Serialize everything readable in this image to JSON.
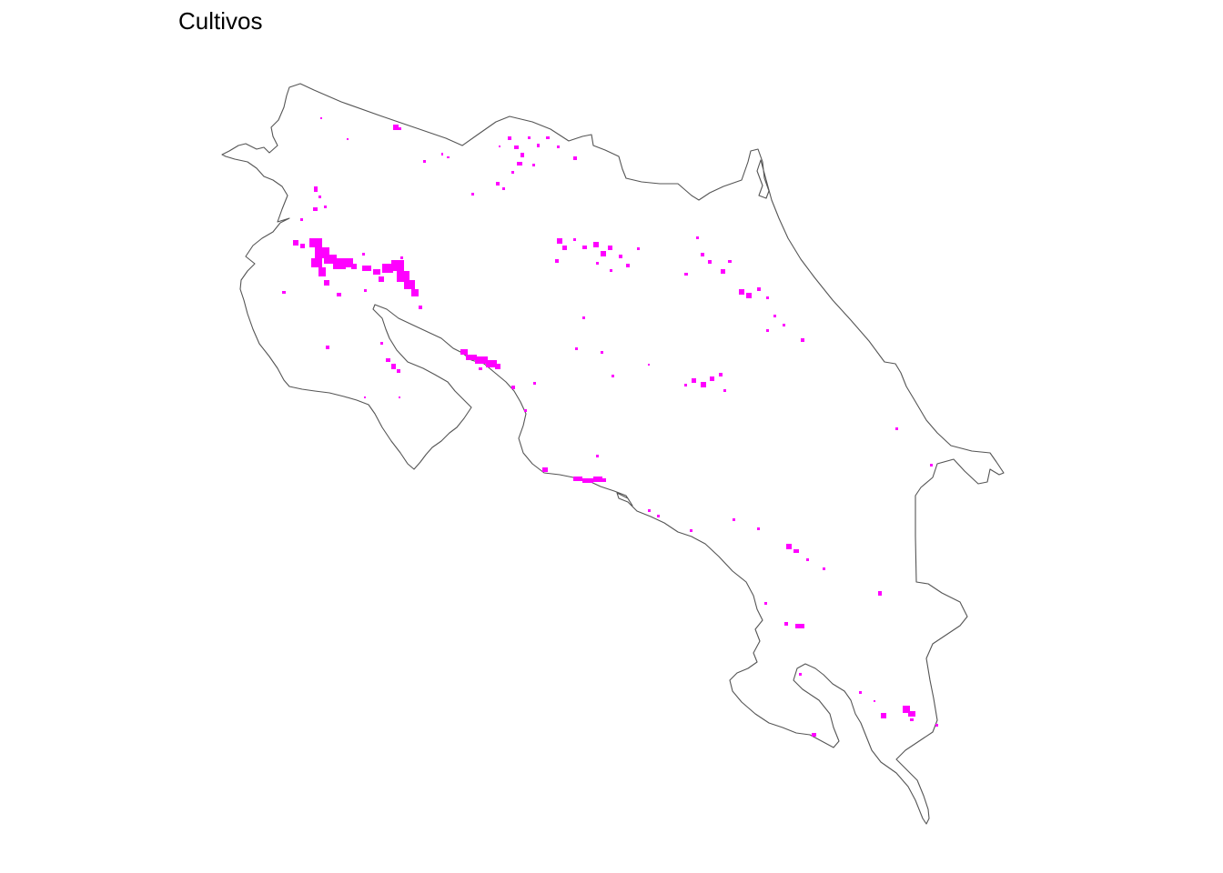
{
  "map": {
    "title": "Cultivos"
  },
  "colors": {
    "background": "#ffffff",
    "outline": "#555555",
    "crop_pixels": "#ff00ff"
  }
}
